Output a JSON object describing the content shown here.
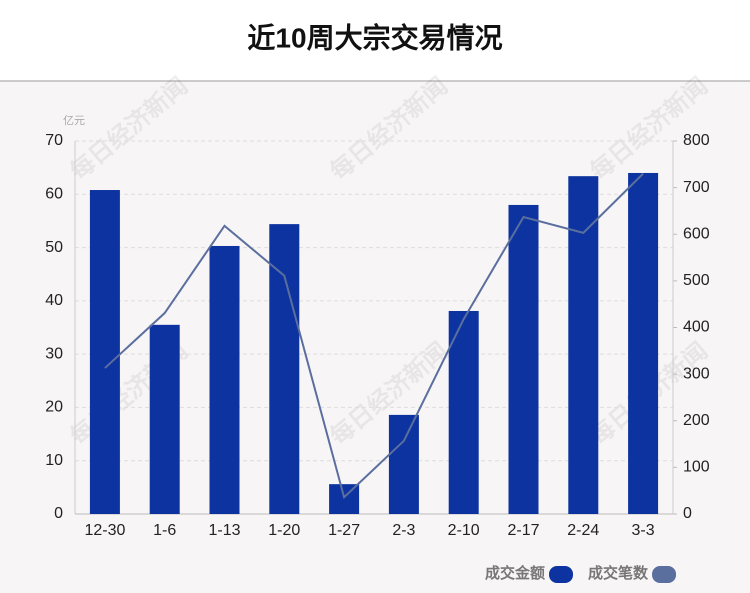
{
  "chart_data": {
    "type": "bar",
    "title": "近10周大宗交易情况",
    "y_unit": "亿元",
    "watermark": "每日经济新闻",
    "categories": [
      "12-30",
      "1-6",
      "1-13",
      "1-20",
      "1-27",
      "2-3",
      "2-10",
      "2-17",
      "2-24",
      "3-3"
    ],
    "series": [
      {
        "name": "成交金额",
        "type": "bar",
        "color": "#0c33a0",
        "values": [
          60.8,
          35.5,
          50.3,
          54.4,
          5.6,
          18.6,
          38.1,
          58.0,
          63.4,
          64.0
        ]
      },
      {
        "name": "成交笔数",
        "type": "line",
        "axis": "y2",
        "color": "#5b6f9e",
        "values": [
          313,
          431,
          618,
          511,
          36,
          157,
          418,
          637,
          603,
          730
        ]
      }
    ],
    "ylim": [
      0,
      70
    ],
    "yticks": [
      0,
      10,
      20,
      30,
      40,
      50,
      60,
      70
    ],
    "y2lim": [
      0,
      800
    ],
    "y2ticks": [
      0,
      100,
      200,
      300,
      400,
      500,
      600,
      700,
      800
    ],
    "grid": true,
    "legend": "bottom-right"
  }
}
